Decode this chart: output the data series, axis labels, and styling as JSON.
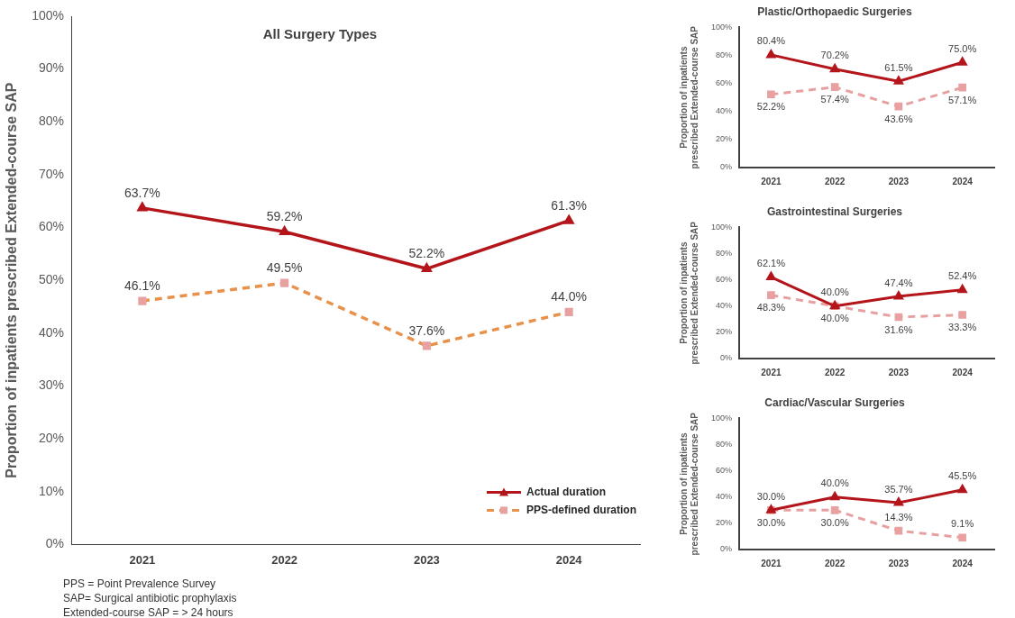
{
  "chart_data": [
    {
      "type": "line",
      "title": "All Surgery Types",
      "ylabel": "Proportion of inpatients prescribed Extended-course SAP",
      "categories": [
        "2021",
        "2022",
        "2023",
        "2024"
      ],
      "series": [
        {
          "name": "Actual duration",
          "color": "#b3151b",
          "values": [
            63.7,
            59.2,
            52.2,
            61.3
          ],
          "value_labels": [
            "63.7%",
            "59.2%",
            "52.2%",
            "61.3%"
          ],
          "marker": "triangle",
          "line_style": "solid"
        },
        {
          "name": "PPS-defined duration",
          "color": "#e8914a",
          "values": [
            46.1,
            49.5,
            37.6,
            44.0
          ],
          "value_labels": [
            "46.1%",
            "49.5%",
            "37.6%",
            "44.0%"
          ],
          "marker": "square",
          "line_style": "dashed"
        }
      ],
      "ylim": [
        0,
        100
      ],
      "yticks": [
        {
          "value": 0,
          "label": "0%"
        },
        {
          "value": 10,
          "label": "10%"
        },
        {
          "value": 20,
          "label": "20%"
        },
        {
          "value": 30,
          "label": "30%"
        },
        {
          "value": 40,
          "label": "40%"
        },
        {
          "value": 50,
          "label": "50%"
        },
        {
          "value": 60,
          "label": "60%"
        },
        {
          "value": 70,
          "label": "70%"
        },
        {
          "value": 80,
          "label": "80%"
        },
        {
          "value": 90,
          "label": "90%"
        },
        {
          "value": 100,
          "label": "100%"
        }
      ],
      "legend": "bottom right",
      "annotations": [
        "PPS = Point Prevalence Survey",
        "SAP= Surgical antibiotic prophylaxis",
        "Extended-course SAP = > 24 hours"
      ]
    },
    {
      "type": "line",
      "title": "Plastic/Orthopaedic Surgeries",
      "ylabel": "Proportion of inpatients prescribed Extended-course SAP",
      "categories": [
        "2021",
        "2022",
        "2023",
        "2024"
      ],
      "series": [
        {
          "color": "#b3151b",
          "values": [
            80.4,
            70.2,
            61.5,
            75.0
          ],
          "value_labels": [
            "80.4%",
            "70.2%",
            "61.5%",
            "75.0%"
          ],
          "marker": "triangle",
          "line_style": "solid"
        },
        {
          "color": "#e6a0a0",
          "values": [
            52.2,
            57.4,
            43.6,
            57.1
          ],
          "value_labels": [
            "52.2%",
            "57.4%",
            "43.6%",
            "57.1%"
          ],
          "marker": "square",
          "line_style": "dashed"
        }
      ],
      "ylim": [
        0,
        100
      ],
      "yticks": [
        {
          "value": 0,
          "label": "0%"
        },
        {
          "value": 20,
          "label": "20%"
        },
        {
          "value": 40,
          "label": "40%"
        },
        {
          "value": 60,
          "label": "60%"
        },
        {
          "value": 80,
          "label": "80%"
        },
        {
          "value": 100,
          "label": "100%"
        }
      ]
    },
    {
      "type": "line",
      "title": "Gastrointestinal Surgeries",
      "ylabel": "Proportion of inpatients prescribed Extended-course SAP",
      "categories": [
        "2021",
        "2022",
        "2023",
        "2024"
      ],
      "series": [
        {
          "color": "#b3151b",
          "values": [
            62.1,
            40.0,
            47.4,
            52.4
          ],
          "value_labels": [
            "62.1%",
            "40.0%",
            "47.4%",
            "52.4%"
          ],
          "marker": "triangle",
          "line_style": "solid"
        },
        {
          "color": "#e6a0a0",
          "values": [
            48.3,
            40.0,
            31.6,
            33.3
          ],
          "value_labels": [
            "48.3%",
            "40.0%",
            "31.6%",
            "33.3%"
          ],
          "marker": "square",
          "line_style": "dashed"
        }
      ],
      "ylim": [
        0,
        100
      ],
      "yticks": [
        {
          "value": 0,
          "label": "0%"
        },
        {
          "value": 20,
          "label": "20%"
        },
        {
          "value": 40,
          "label": "40%"
        },
        {
          "value": 60,
          "label": "60%"
        },
        {
          "value": 80,
          "label": "80%"
        },
        {
          "value": 100,
          "label": "100%"
        }
      ]
    },
    {
      "type": "line",
      "title": "Cardiac/Vascular Surgeries",
      "ylabel": "Proportion of inpatients prescribed Extended-course SAP",
      "categories": [
        "2021",
        "2022",
        "2023",
        "2024"
      ],
      "series": [
        {
          "color": "#b3151b",
          "values": [
            30.0,
            40.0,
            35.7,
            45.5
          ],
          "value_labels": [
            "30.0%",
            "40.0%",
            "35.7%",
            "45.5%"
          ],
          "marker": "triangle",
          "line_style": "solid"
        },
        {
          "color": "#e6a0a0",
          "values": [
            30.0,
            30.0,
            14.3,
            9.1
          ],
          "value_labels": [
            "30.0%",
            "30.0%",
            "14.3%",
            "9.1%"
          ],
          "marker": "square",
          "line_style": "dashed"
        }
      ],
      "ylim": [
        0,
        100
      ],
      "yticks": [
        {
          "value": 0,
          "label": "0%"
        },
        {
          "value": 20,
          "label": "20%"
        },
        {
          "value": 40,
          "label": "40%"
        },
        {
          "value": 60,
          "label": "60%"
        },
        {
          "value": 80,
          "label": "80%"
        },
        {
          "value": 100,
          "label": "100%"
        }
      ]
    }
  ]
}
